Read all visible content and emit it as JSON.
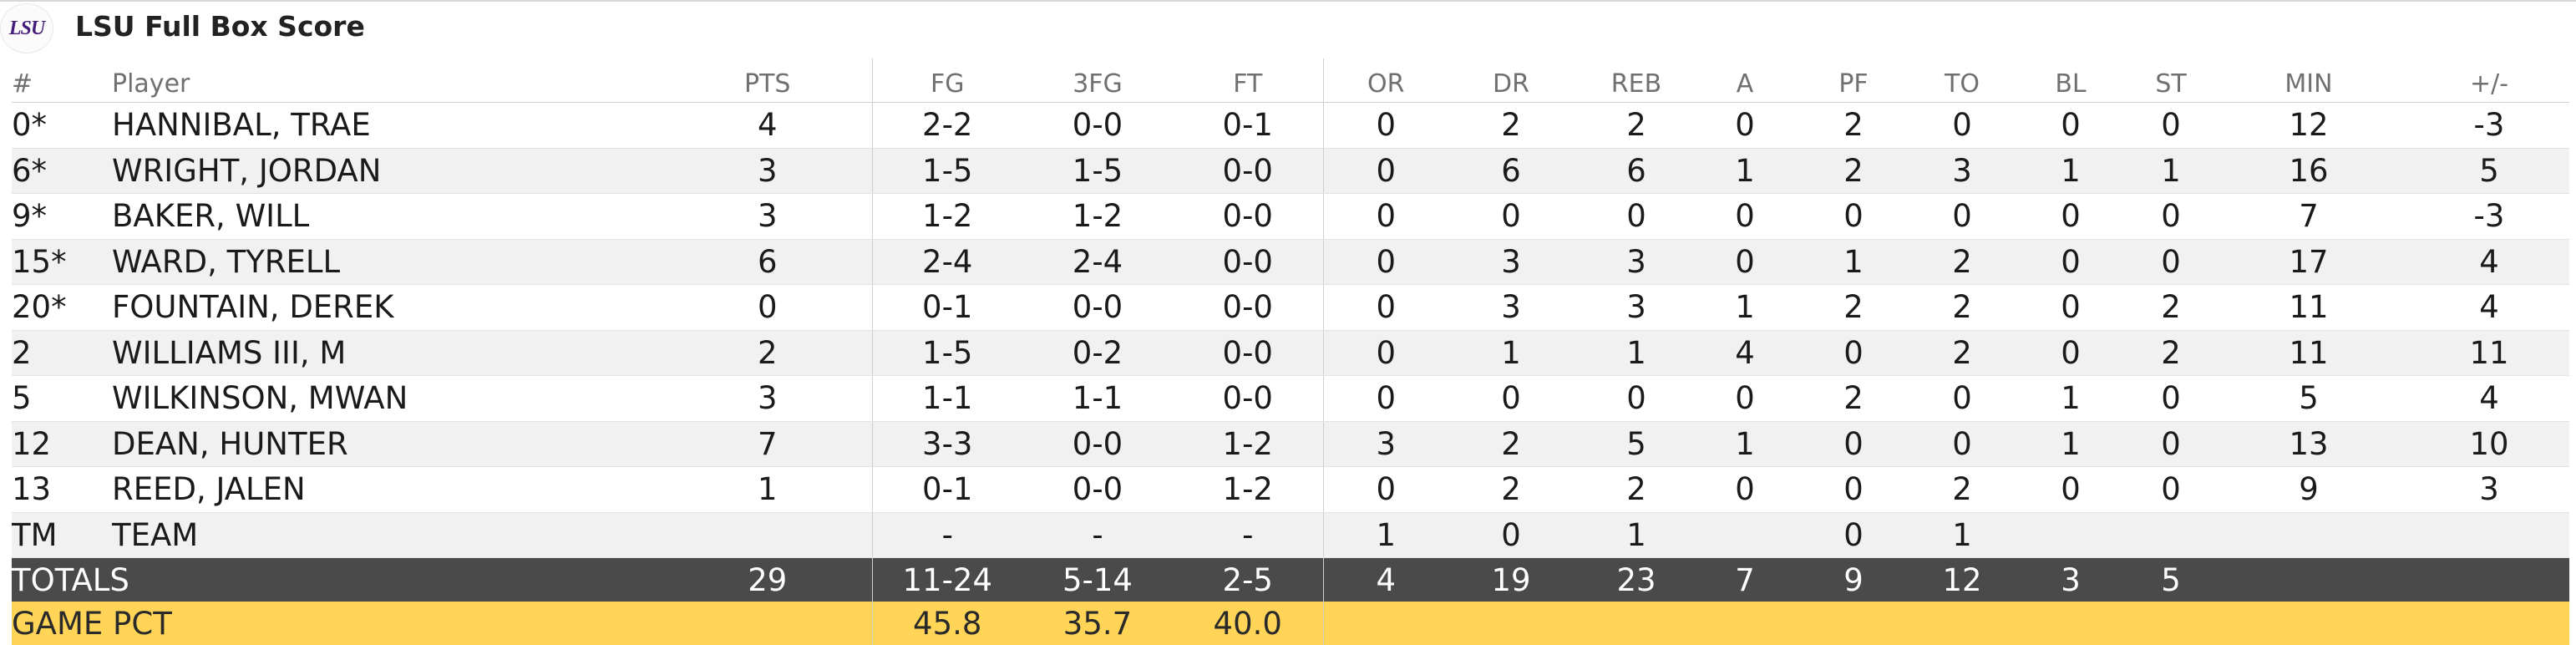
{
  "header": {
    "logo_text": "LSU",
    "title": "LSU Full Box Score"
  },
  "columns": [
    "#",
    "Player",
    "PTS",
    "FG",
    "3FG",
    "FT",
    "OR",
    "DR",
    "REB",
    "A",
    "PF",
    "TO",
    "BL",
    "ST",
    "MIN",
    "+/-"
  ],
  "rows": [
    [
      "0*",
      "HANNIBAL, TRAE",
      "4",
      "2-2",
      "0-0",
      "0-1",
      "0",
      "2",
      "2",
      "0",
      "2",
      "0",
      "0",
      "0",
      "12",
      "-3"
    ],
    [
      "6*",
      "WRIGHT, JORDAN",
      "3",
      "1-5",
      "1-5",
      "0-0",
      "0",
      "6",
      "6",
      "1",
      "2",
      "3",
      "1",
      "1",
      "16",
      "5"
    ],
    [
      "9*",
      "BAKER, WILL",
      "3",
      "1-2",
      "1-2",
      "0-0",
      "0",
      "0",
      "0",
      "0",
      "0",
      "0",
      "0",
      "0",
      "7",
      "-3"
    ],
    [
      "15*",
      "WARD, TYRELL",
      "6",
      "2-4",
      "2-4",
      "0-0",
      "0",
      "3",
      "3",
      "0",
      "1",
      "2",
      "0",
      "0",
      "17",
      "4"
    ],
    [
      "20*",
      "FOUNTAIN, DEREK",
      "0",
      "0-1",
      "0-0",
      "0-0",
      "0",
      "3",
      "3",
      "1",
      "2",
      "2",
      "0",
      "2",
      "11",
      "4"
    ],
    [
      "2",
      "WILLIAMS III, M",
      "2",
      "1-5",
      "0-2",
      "0-0",
      "0",
      "1",
      "1",
      "4",
      "0",
      "2",
      "0",
      "2",
      "11",
      "11"
    ],
    [
      "5",
      "WILKINSON, MWAN",
      "3",
      "1-1",
      "1-1",
      "0-0",
      "0",
      "0",
      "0",
      "0",
      "2",
      "0",
      "1",
      "0",
      "5",
      "4"
    ],
    [
      "12",
      "DEAN, HUNTER",
      "7",
      "3-3",
      "0-0",
      "1-2",
      "3",
      "2",
      "5",
      "1",
      "0",
      "0",
      "1",
      "0",
      "13",
      "10"
    ],
    [
      "13",
      "REED, JALEN",
      "1",
      "0-1",
      "0-0",
      "1-2",
      "0",
      "2",
      "2",
      "0",
      "0",
      "2",
      "0",
      "0",
      "9",
      "3"
    ],
    [
      "TM",
      "TEAM",
      "",
      "-",
      "-",
      "-",
      "1",
      "0",
      "1",
      "",
      "0",
      "1",
      "",
      "",
      "",
      ""
    ]
  ],
  "totals": [
    "TOTALS",
    "29",
    "11-24",
    "5-14",
    "2-5",
    "4",
    "19",
    "23",
    "7",
    "9",
    "12",
    "3",
    "5",
    "",
    ""
  ],
  "game_pct": {
    "label": "GAME PCT",
    "fg": "45.8",
    "three": "35.7",
    "ft": "40.0"
  },
  "colors": {
    "totals_bg": "#4a4a4a",
    "pct_bg": "#ffd457",
    "lsu_purple": "#461d7c"
  }
}
